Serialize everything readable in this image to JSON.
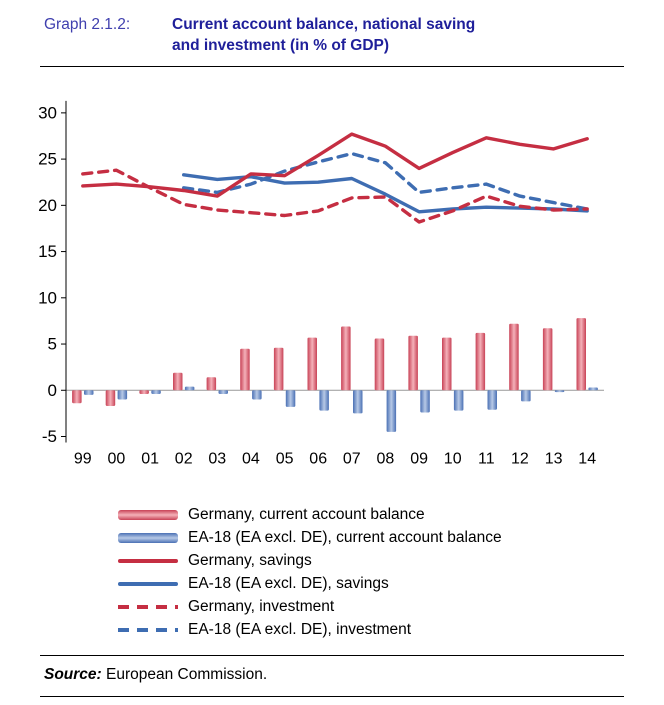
{
  "header": {
    "label": "Graph 2.1.2:",
    "title_line1": "Current account balance, national saving",
    "title_line2": "and investment (in % of GDP)"
  },
  "source": {
    "label": "Source:",
    "text": " European Commission."
  },
  "colors": {
    "header_label": "#3f3fae",
    "header_title": "#1f1f9a",
    "bar_red_edge": "#c84256",
    "bar_red_mid": "#f4b1b9",
    "bar_blue_edge": "#4a70b4",
    "bar_blue_mid": "#b7c9e6",
    "line_red": "#c52e42",
    "line_blue": "#3e6db2",
    "axis": "#000000",
    "zero_line": "#999999"
  },
  "chart_data": {
    "type": "composite",
    "title": "Current account balance, national saving and investment (in % of GDP)",
    "xlabel": "",
    "ylabel": "",
    "ylim": [
      -5,
      30
    ],
    "yticks": [
      -5,
      0,
      5,
      10,
      15,
      20,
      25,
      30
    ],
    "grid": false,
    "legend_position": "bottom",
    "categories": [
      "99",
      "00",
      "01",
      "02",
      "03",
      "04",
      "05",
      "06",
      "07",
      "08",
      "09",
      "10",
      "11",
      "12",
      "13",
      "14"
    ],
    "series": [
      {
        "name": "Germany, current account balance",
        "type": "bar",
        "color": "red",
        "values": [
          -1.4,
          -1.7,
          -0.4,
          1.9,
          1.4,
          4.5,
          4.6,
          5.7,
          6.9,
          5.6,
          5.9,
          5.7,
          6.2,
          7.2,
          6.7,
          7.8
        ]
      },
      {
        "name": "EA-18 (EA excl. DE), current account balance",
        "type": "bar",
        "color": "blue",
        "values": [
          -0.5,
          -1.0,
          -0.4,
          0.4,
          -0.4,
          -1.0,
          -1.8,
          -2.2,
          -2.5,
          -4.5,
          -2.4,
          -2.2,
          -2.1,
          -1.2,
          -0.2,
          0.3
        ]
      },
      {
        "name": "Germany, savings",
        "type": "line",
        "style": "solid",
        "color": "red",
        "values": [
          22.1,
          22.3,
          22.0,
          21.6,
          21.0,
          23.4,
          23.2,
          25.4,
          27.7,
          26.4,
          24.0,
          25.7,
          27.3,
          26.6,
          26.1,
          27.2
        ]
      },
      {
        "name": "EA-18 (EA excl. DE), savings",
        "type": "line",
        "style": "solid",
        "color": "blue",
        "values": [
          null,
          null,
          null,
          23.3,
          22.8,
          23.1,
          22.4,
          22.5,
          22.9,
          21.2,
          19.3,
          19.6,
          19.8,
          19.7,
          19.6,
          19.4
        ]
      },
      {
        "name": "Germany, investment",
        "type": "line",
        "style": "dashed",
        "color": "red",
        "values": [
          23.4,
          23.8,
          21.9,
          20.1,
          19.5,
          19.2,
          18.9,
          19.4,
          20.8,
          20.9,
          18.2,
          19.4,
          21.0,
          19.9,
          19.5,
          19.6
        ]
      },
      {
        "name": "EA-18 (EA excl. DE), investment",
        "type": "line",
        "style": "dashed",
        "color": "blue",
        "values": [
          null,
          null,
          null,
          21.9,
          21.4,
          22.3,
          23.7,
          24.7,
          25.6,
          24.6,
          21.4,
          21.9,
          22.3,
          21.0,
          20.3,
          19.6
        ]
      }
    ]
  }
}
